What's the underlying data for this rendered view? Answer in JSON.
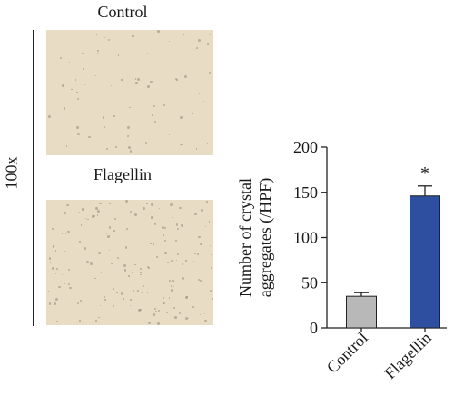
{
  "panels": {
    "control_title": "Control",
    "flagellin_title": "Flagellin",
    "magnification": "100x"
  },
  "chart_data": {
    "type": "bar",
    "categories": [
      "Control",
      "Flagellin"
    ],
    "values": [
      35,
      146
    ],
    "errors": [
      4,
      11
    ],
    "colors": [
      "#b8b8b8",
      "#2e4ea0"
    ],
    "ylabel_lines": [
      "Number of crystal",
      "aggregates (/HPF)"
    ],
    "yticks": [
      0,
      50,
      100,
      150,
      200
    ],
    "ylim": [
      0,
      200
    ],
    "annotations": [
      {
        "category": "Flagellin",
        "text": "*"
      }
    ],
    "grid": false
  }
}
